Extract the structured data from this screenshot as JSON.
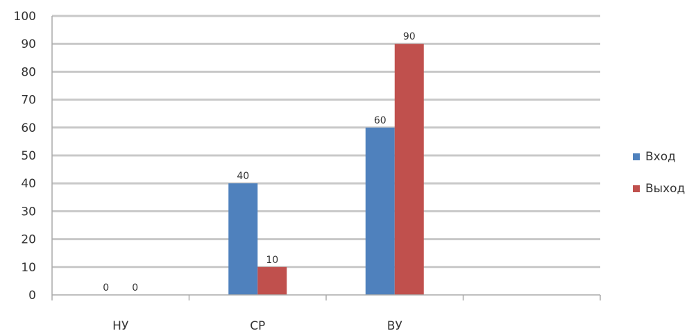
{
  "chart_data": {
    "type": "bar",
    "categories": [
      "НУ",
      "СР",
      "ВУ",
      ""
    ],
    "series": [
      {
        "name": "Вход",
        "values": [
          0,
          40,
          60,
          0
        ],
        "color": "#4f81bd"
      },
      {
        "name": "Выход",
        "values": [
          0,
          10,
          90,
          0
        ],
        "color": "#c0504d"
      }
    ],
    "data_labels": [
      [
        "0",
        "40",
        "60",
        null
      ],
      [
        "0",
        "10",
        "90",
        null
      ]
    ],
    "yticks": [
      "0",
      "10",
      "20",
      "30",
      "40",
      "50",
      "60",
      "70",
      "80",
      "90",
      "100"
    ],
    "ylim": [
      0,
      100
    ],
    "grid": true,
    "legend": "right"
  }
}
